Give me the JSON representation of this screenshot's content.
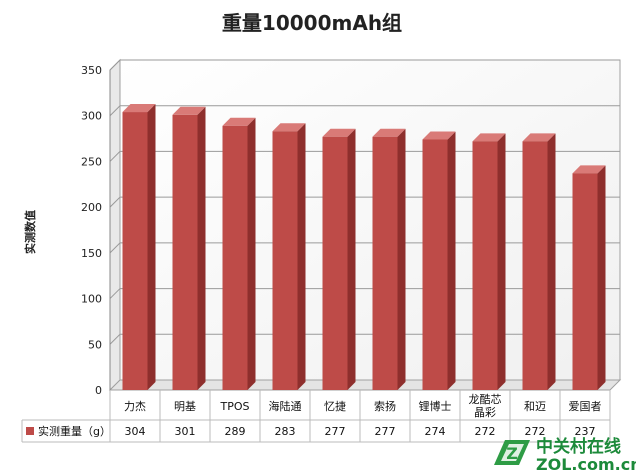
{
  "chart_data": {
    "type": "bar",
    "title": "重量10000mAh组",
    "ylabel": "实测数值",
    "xlabel": "",
    "ylim": [
      0,
      350
    ],
    "yticks": [
      0,
      50,
      100,
      150,
      200,
      250,
      300,
      350
    ],
    "grid": true,
    "categories": [
      "力杰",
      "明基",
      "TPOS",
      "海陆通",
      "忆捷",
      "索扬",
      "锂博士",
      "龙酷芯晶彩",
      "和迈",
      "爱国者"
    ],
    "category_lines": [
      [
        "力杰"
      ],
      [
        "明基"
      ],
      [
        "TPOS"
      ],
      [
        "海陆通"
      ],
      [
        "忆捷"
      ],
      [
        "索扬"
      ],
      [
        "锂博士"
      ],
      [
        "龙酷芯",
        "晶彩"
      ],
      [
        "和迈"
      ],
      [
        "爱国者"
      ]
    ],
    "series": [
      {
        "name": "实测重量（g）",
        "values": [
          304,
          301,
          289,
          283,
          277,
          277,
          274,
          272,
          272,
          237
        ],
        "color": "#be4b48"
      }
    ],
    "data_table": true
  },
  "watermark": {
    "logo_letter": "Z",
    "line1": "中关村在线",
    "line2": "ZOL.com.cn"
  }
}
